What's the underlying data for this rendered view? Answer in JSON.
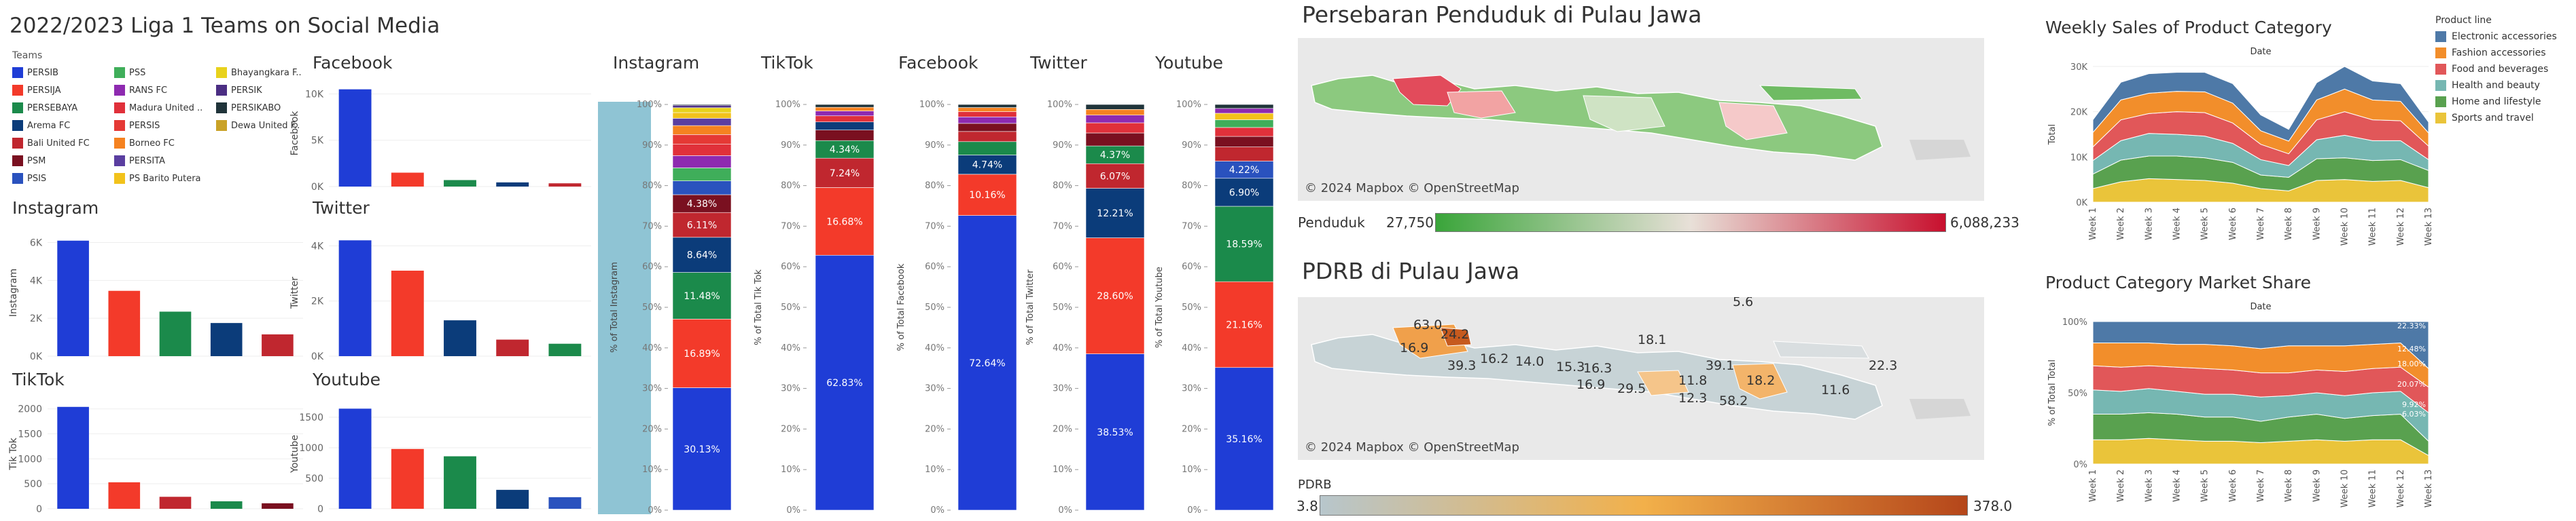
{
  "dashboard": {
    "title": "2022/2023 Liga 1 Teams on Social Media",
    "legend_title": "Teams",
    "teams": [
      {
        "name": "PERSIB",
        "color": "#1f3dd6"
      },
      {
        "name": "PERSIJA",
        "color": "#f33a2a"
      },
      {
        "name": "PERSEBAYA",
        "color": "#1b8a4b"
      },
      {
        "name": "Arema FC",
        "color": "#0b3c7a"
      },
      {
        "name": "Bali United FC",
        "color": "#c0272f"
      },
      {
        "name": "PSM",
        "color": "#7a1020"
      },
      {
        "name": "PSIS",
        "color": "#2a52be"
      },
      {
        "name": "PSS",
        "color": "#3fae5a"
      },
      {
        "name": "RANS FC",
        "color": "#8e2ab0"
      },
      {
        "name": "Madura United ..",
        "color": "#e0303a"
      },
      {
        "name": "PERSIS",
        "color": "#e53935"
      },
      {
        "name": "Borneo FC",
        "color": "#f58220"
      },
      {
        "name": "PERSITA",
        "color": "#5a3ea0"
      },
      {
        "name": "PS Barito Putera",
        "color": "#f2c21b"
      },
      {
        "name": "Bhayangkara F..",
        "color": "#e8d21c"
      },
      {
        "name": "PERSIK",
        "color": "#4b2e83"
      },
      {
        "name": "PERSIKABO",
        "color": "#20343a"
      },
      {
        "name": "Dewa United F..",
        "color": "#c9a227"
      }
    ],
    "bar_colors": [
      "#1f3dd6",
      "#f33a2a",
      "#1b8a4b",
      "#0b3c7a",
      "#c0272f"
    ]
  },
  "chart_data": [
    {
      "type": "bar",
      "title": "Facebook",
      "ylabel": "Facebook",
      "categories": [
        "PERSIB",
        "PERSIJA",
        "Arema FC",
        "PERSEBAYA",
        "Bali United FC"
      ],
      "values": [
        10500,
        1500,
        700,
        450,
        350
      ],
      "ylim": [
        0,
        11500
      ],
      "ticks": [
        0,
        5000,
        10000
      ],
      "tick_labels": [
        "0K",
        "5K",
        "10K"
      ]
    },
    {
      "type": "bar",
      "title": "Instagram",
      "ylabel": "Instagram",
      "categories": [
        "PERSIB",
        "PERSIJA",
        "PERSEBAYA",
        "Arema FC",
        "Bali United FC"
      ],
      "values": [
        6100,
        3450,
        2350,
        1750,
        1150
      ],
      "ylim": [
        0,
        6700
      ],
      "ticks": [
        0,
        2000,
        4000,
        6000
      ],
      "tick_labels": [
        "0K",
        "2K",
        "4K",
        "6K"
      ]
    },
    {
      "type": "bar",
      "title": "Twitter",
      "ylabel": "Twitter",
      "categories": [
        "PERSIB",
        "PERSIJA",
        "Arema FC",
        "Bali United FC",
        "PERSEBAYA"
      ],
      "values": [
        4200,
        3100,
        1300,
        600,
        450
      ],
      "ylim": [
        0,
        4600
      ],
      "ticks": [
        0,
        2000,
        4000
      ],
      "tick_labels": [
        "0K",
        "2K",
        "4K"
      ]
    },
    {
      "type": "bar",
      "title": "TikTok",
      "ylabel": "Tik Tok",
      "categories": [
        "PERSIB",
        "PERSIJA",
        "Bali United FC",
        "PERSEBAYA",
        "PSM"
      ],
      "values": [
        2040,
        530,
        240,
        150,
        110
      ],
      "ylim": [
        0,
        2200
      ],
      "ticks": [
        0,
        500,
        1000,
        1500,
        2000
      ],
      "tick_labels": [
        "0",
        "500",
        "1000",
        "1500",
        "2000"
      ]
    },
    {
      "type": "bar",
      "title": "Youtube",
      "ylabel": "Youtube",
      "categories": [
        "PERSIB",
        "PERSIJA",
        "PERSEBAYA",
        "Arema FC",
        "PSIS"
      ],
      "values": [
        1640,
        980,
        860,
        310,
        190
      ],
      "ylim": [
        0,
        1800
      ],
      "ticks": [
        0,
        500,
        1000,
        1500
      ],
      "tick_labels": [
        "0",
        "500",
        "1000",
        "1500"
      ]
    },
    {
      "type": "bar",
      "title": "Instagram",
      "ylabel": "% of Total Instagram",
      "stacked": true,
      "segments": [
        {
          "value": 30.13,
          "label": "30.13%",
          "color": "#1f3dd6"
        },
        {
          "value": 16.89,
          "label": "16.89%",
          "color": "#f33a2a"
        },
        {
          "value": 11.48,
          "label": "11.48%",
          "color": "#1b8a4b"
        },
        {
          "value": 8.64,
          "label": "8.64%",
          "color": "#0b3c7a"
        },
        {
          "value": 6.11,
          "label": "6.11%",
          "color": "#c0272f"
        },
        {
          "value": 4.38,
          "label": "4.38%",
          "color": "#7a1020"
        },
        {
          "value": 3.4,
          "label": "",
          "color": "#2a52be"
        },
        {
          "value": 3.2,
          "label": "",
          "color": "#3fae5a"
        },
        {
          "value": 3.0,
          "label": "",
          "color": "#8e2ab0"
        },
        {
          "value": 2.8,
          "label": "",
          "color": "#e0303a"
        },
        {
          "value": 2.4,
          "label": "",
          "color": "#e53935"
        },
        {
          "value": 2.2,
          "label": "",
          "color": "#f58220"
        },
        {
          "value": 1.8,
          "label": "",
          "color": "#5a3ea0"
        },
        {
          "value": 1.4,
          "label": "",
          "color": "#f2c21b"
        },
        {
          "value": 1.2,
          "label": "",
          "color": "#e8d21c"
        },
        {
          "value": 0.6,
          "label": "",
          "color": "#4b2e83"
        },
        {
          "value": 0.2,
          "label": "",
          "color": "#20343a"
        },
        {
          "value": 0.0,
          "label": "",
          "color": "#c9a227"
        }
      ]
    },
    {
      "type": "bar",
      "title": "TikTok",
      "ylabel": "% of Total Tik Tok",
      "stacked": true,
      "segments": [
        {
          "value": 62.83,
          "label": "62.83%",
          "color": "#1f3dd6"
        },
        {
          "value": 16.68,
          "label": "16.68%",
          "color": "#f33a2a"
        },
        {
          "value": 7.24,
          "label": "7.24%",
          "color": "#c0272f"
        },
        {
          "value": 4.34,
          "label": "4.34%",
          "color": "#1b8a4b"
        },
        {
          "value": 2.6,
          "label": "",
          "color": "#7a1020"
        },
        {
          "value": 2.0,
          "label": "",
          "color": "#0b3c7a"
        },
        {
          "value": 1.5,
          "label": "",
          "color": "#e0303a"
        },
        {
          "value": 1.2,
          "label": "",
          "color": "#8e2ab0"
        },
        {
          "value": 0.9,
          "label": "",
          "color": "#f58220"
        },
        {
          "value": 0.7,
          "label": "",
          "color": "#20343a"
        }
      ]
    },
    {
      "type": "bar",
      "title": "Facebook",
      "ylabel": "% of Total Facebook",
      "stacked": true,
      "segments": [
        {
          "value": 72.64,
          "label": "72.64%",
          "color": "#1f3dd6"
        },
        {
          "value": 10.16,
          "label": "10.16%",
          "color": "#f33a2a"
        },
        {
          "value": 4.74,
          "label": "4.74%",
          "color": "#0b3c7a"
        },
        {
          "value": 3.3,
          "label": "",
          "color": "#1b8a4b"
        },
        {
          "value": 2.5,
          "label": "",
          "color": "#c0272f"
        },
        {
          "value": 2.0,
          "label": "",
          "color": "#7a1020"
        },
        {
          "value": 1.6,
          "label": "",
          "color": "#8e2ab0"
        },
        {
          "value": 1.3,
          "label": "",
          "color": "#e0303a"
        },
        {
          "value": 1.0,
          "label": "",
          "color": "#f58220"
        },
        {
          "value": 0.76,
          "label": "",
          "color": "#20343a"
        }
      ]
    },
    {
      "type": "bar",
      "title": "Twitter",
      "ylabel": "% of Total Twitter",
      "stacked": true,
      "segments": [
        {
          "value": 38.53,
          "label": "38.53%",
          "color": "#1f3dd6"
        },
        {
          "value": 28.6,
          "label": "28.60%",
          "color": "#f33a2a"
        },
        {
          "value": 12.21,
          "label": "12.21%",
          "color": "#0b3c7a"
        },
        {
          "value": 6.07,
          "label": "6.07%",
          "color": "#c0272f"
        },
        {
          "value": 4.37,
          "label": "4.37%",
          "color": "#1b8a4b"
        },
        {
          "value": 3.2,
          "label": "",
          "color": "#7a1020"
        },
        {
          "value": 2.5,
          "label": "",
          "color": "#e0303a"
        },
        {
          "value": 1.9,
          "label": "",
          "color": "#8e2ab0"
        },
        {
          "value": 1.4,
          "label": "",
          "color": "#f58220"
        },
        {
          "value": 1.22,
          "label": "",
          "color": "#20343a"
        }
      ]
    },
    {
      "type": "bar",
      "title": "Youtube",
      "ylabel": "% of Total Youtube",
      "stacked": true,
      "segments": [
        {
          "value": 35.16,
          "label": "35.16%",
          "color": "#1f3dd6"
        },
        {
          "value": 21.16,
          "label": "21.16%",
          "color": "#f33a2a"
        },
        {
          "value": 18.59,
          "label": "18.59%",
          "color": "#1b8a4b"
        },
        {
          "value": 6.9,
          "label": "6.90%",
          "color": "#0b3c7a"
        },
        {
          "value": 4.22,
          "label": "4.22%",
          "color": "#2a52be"
        },
        {
          "value": 3.5,
          "label": "",
          "color": "#c0272f"
        },
        {
          "value": 2.6,
          "label": "",
          "color": "#7a1020"
        },
        {
          "value": 2.2,
          "label": "",
          "color": "#e0303a"
        },
        {
          "value": 1.9,
          "label": "",
          "color": "#3fae5a"
        },
        {
          "value": 1.6,
          "label": "",
          "color": "#f2c21b"
        },
        {
          "value": 1.2,
          "label": "",
          "color": "#8e2ab0"
        },
        {
          "value": 0.97,
          "label": "",
          "color": "#20343a"
        }
      ]
    },
    {
      "type": "area",
      "title": "Weekly Sales of Product Category",
      "subtitle": "Date",
      "ylabel": "Total",
      "x": [
        "Week 1",
        "Week 2",
        "Week 3",
        "Week 4",
        "Week 5",
        "Week 6",
        "Week 7",
        "Week 8",
        "Week 9",
        "Week 10",
        "Week 11",
        "Week 12",
        "Week 13"
      ],
      "ylim": [
        0,
        30000
      ],
      "ticks": [
        0,
        10000,
        20000,
        30000
      ],
      "tick_labels": [
        "0K",
        "10K",
        "20K",
        "30K"
      ],
      "series": [
        {
          "name": "Sports and travel",
          "color": "#eac43a",
          "values": [
            3000,
            4500,
            5200,
            5000,
            4800,
            4200,
            3000,
            2500,
            4800,
            5000,
            4600,
            4800,
            3200
          ]
        },
        {
          "name": "Home and lifestyle",
          "color": "#59a14f",
          "values": [
            3200,
            4800,
            5000,
            5200,
            5000,
            4600,
            3000,
            3000,
            4800,
            4800,
            4600,
            4600,
            3800
          ]
        },
        {
          "name": "Health and beauty",
          "color": "#76b7b2",
          "values": [
            3000,
            4300,
            5000,
            4800,
            4800,
            4200,
            3400,
            2600,
            4200,
            5000,
            4400,
            4200,
            2400
          ]
        },
        {
          "name": "Food and beverages",
          "color": "#e15759",
          "values": [
            3000,
            4600,
            4400,
            5000,
            5200,
            4500,
            3400,
            2600,
            4400,
            5200,
            4600,
            4400,
            3000
          ]
        },
        {
          "name": "Fashion accessories",
          "color": "#f28e2b",
          "values": [
            3200,
            4400,
            4500,
            4500,
            4600,
            4400,
            3000,
            2800,
            4400,
            5000,
            4400,
            4300,
            2900
          ]
        },
        {
          "name": "Electronic accessories",
          "color": "#4e79a7",
          "values": [
            2800,
            3900,
            4300,
            4200,
            4300,
            4300,
            3500,
            2600,
            3800,
            5000,
            4200,
            3900,
            2400
          ]
        }
      ]
    },
    {
      "type": "area",
      "title": "Product Category Market Share",
      "subtitle": "Date",
      "ylabel": "% of Total Total",
      "stacked_percent": true,
      "x": [
        "Week 1",
        "Week 2",
        "Week 3",
        "Week 4",
        "Week 5",
        "Week 6",
        "Week 7",
        "Week 8",
        "Week 9",
        "Week 10",
        "Week 11",
        "Week 12",
        "Week 13"
      ],
      "ylim": [
        0,
        100
      ],
      "ticks": [
        0,
        50,
        100
      ],
      "tick_labels": [
        "0%",
        "50%",
        "100%"
      ],
      "end_labels": [
        "22.33%",
        "12.48%",
        "18.00%",
        "20.07%",
        "9.92%",
        "6.03%"
      ],
      "series": [
        {
          "name": "Sports and travel",
          "color": "#eac43a",
          "values": [
            17,
            17,
            18,
            17,
            16,
            16,
            15,
            16,
            17,
            16,
            17,
            17,
            6
          ]
        },
        {
          "name": "Home and lifestyle",
          "color": "#59a14f",
          "values": [
            18,
            18,
            18,
            18,
            17,
            17,
            15,
            17,
            18,
            16,
            17,
            18,
            10
          ]
        },
        {
          "name": "Health and beauty",
          "color": "#76b7b2",
          "values": [
            17,
            16,
            17,
            16,
            16,
            16,
            17,
            15,
            15,
            16,
            16,
            16,
            20
          ]
        },
        {
          "name": "Food and beverages",
          "color": "#e15759",
          "values": [
            17,
            17,
            16,
            17,
            18,
            17,
            17,
            16,
            16,
            17,
            17,
            17,
            18
          ]
        },
        {
          "name": "Fashion accessories",
          "color": "#f28e2b",
          "values": [
            16,
            17,
            16,
            16,
            17,
            17,
            17,
            19,
            17,
            18,
            17,
            17,
            13
          ]
        },
        {
          "name": "Electronic accessories",
          "color": "#4e79a7",
          "values": [
            15,
            15,
            15,
            16,
            16,
            17,
            19,
            17,
            17,
            17,
            16,
            15,
            33
          ]
        }
      ]
    }
  ],
  "maps": {
    "penduduk": {
      "title": "Persebaran Penduduk di Pulau Jawa",
      "credit": "© 2024 Mapbox © OpenStreetMap",
      "legend_label": "Penduduk",
      "min": "27,750",
      "max": "6,088,233",
      "colors": [
        "#3aa53a",
        "#e8e0d8",
        "#c8102e"
      ]
    },
    "pdrb": {
      "title": "PDRB di Pulau Jawa",
      "credit": "© 2024 Mapbox © OpenStreetMap",
      "legend_label": "PDRB",
      "min": "3.8",
      "max": "378.0",
      "colors": [
        "#b7c6cc",
        "#f2b04a",
        "#b5461a"
      ],
      "labels": [
        "5.6",
        "63.0",
        "24.2",
        "16.9",
        "39.3",
        "16.2",
        "14.0",
        "15.3",
        "16.3",
        "18.1",
        "39.1",
        "11.8",
        "18.2",
        "16.9",
        "29.5",
        "12.3",
        "58.2",
        "22.3",
        "11.6"
      ]
    }
  },
  "product_legend": {
    "title": "Product line",
    "items": [
      {
        "name": "Electronic accessories",
        "color": "#4e79a7"
      },
      {
        "name": "Fashion accessories",
        "color": "#f28e2b"
      },
      {
        "name": "Food and beverages",
        "color": "#e15759"
      },
      {
        "name": "Health and beauty",
        "color": "#76b7b2"
      },
      {
        "name": "Home and lifestyle",
        "color": "#59a14f"
      },
      {
        "name": "Sports and travel",
        "color": "#eac43a"
      }
    ]
  }
}
